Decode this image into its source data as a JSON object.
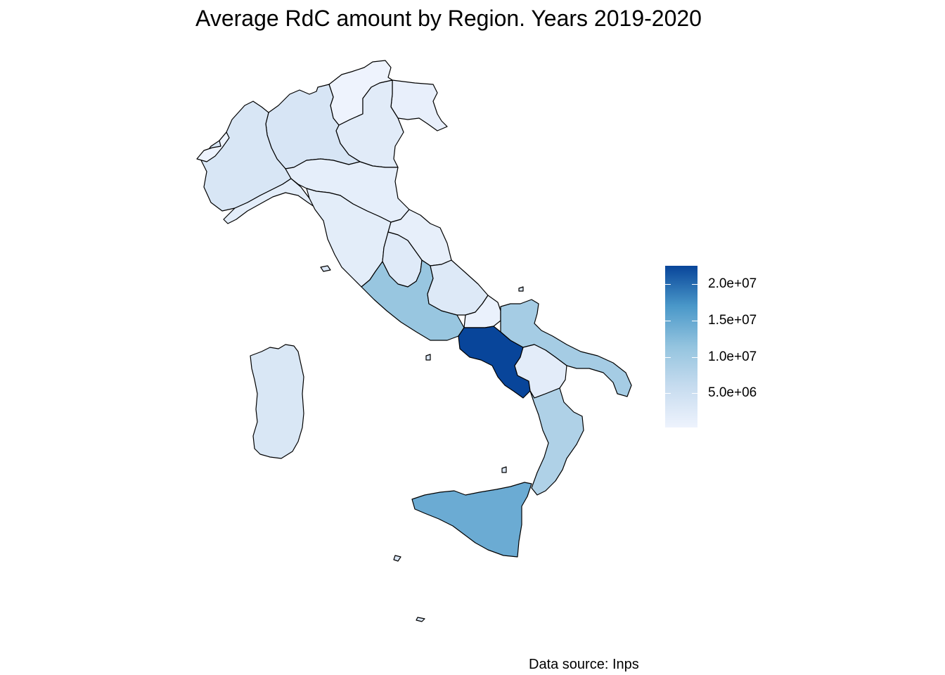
{
  "title": "Average RdC amount by Region. Years 2019-2020",
  "caption": "Data source: Inps",
  "legend": {
    "ticks": [
      "2.0e+07",
      "1.5e+07",
      "1.0e+07",
      "5.0e+06"
    ],
    "tick_values": [
      20000000,
      15000000,
      10000000,
      5000000
    ],
    "range": [
      300000,
      22500000
    ],
    "colors": {
      "low": "#eef3fd",
      "high": "#08459a"
    }
  },
  "regions": [
    {
      "name": "Trentino-Alto Adige",
      "value": 300000
    },
    {
      "name": "Friuli-Venezia Giulia",
      "value": 1200000
    },
    {
      "name": "Veneto",
      "value": 2200000
    },
    {
      "name": "Lombardia",
      "value": 3600000
    },
    {
      "name": "Piemonte",
      "value": 3400000
    },
    {
      "name": "Valle d'Aosta",
      "value": 400000
    },
    {
      "name": "Liguria",
      "value": 1800000
    },
    {
      "name": "Emilia-Romagna",
      "value": 1600000
    },
    {
      "name": "Toscana",
      "value": 1800000
    },
    {
      "name": "Marche",
      "value": 1300000
    },
    {
      "name": "Umbria",
      "value": 2400000
    },
    {
      "name": "Lazio",
      "value": 11000000
    },
    {
      "name": "Abruzzo",
      "value": 2700000
    },
    {
      "name": "Molise",
      "value": 800000
    },
    {
      "name": "Campania",
      "value": 22500000
    },
    {
      "name": "Puglia",
      "value": 9500000
    },
    {
      "name": "Basilicata",
      "value": 1900000
    },
    {
      "name": "Calabria",
      "value": 8500000
    },
    {
      "name": "Sicilia",
      "value": 14500000
    },
    {
      "name": "Sardegna",
      "value": 3300000
    }
  ]
}
